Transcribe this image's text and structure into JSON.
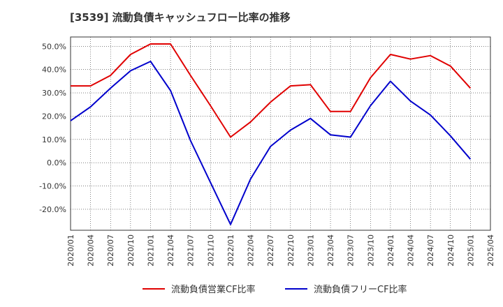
{
  "chart_data": {
    "type": "line",
    "title": "[3539]  流動負債キャッシュフロー比率の推移",
    "xlabel": "",
    "ylabel": "",
    "ylim": [
      -29,
      54
    ],
    "yticks": [
      50,
      40,
      30,
      20,
      10,
      0,
      -10,
      -20
    ],
    "ytick_labels": [
      "50.0%",
      "40.0%",
      "30.0%",
      "20.0%",
      "10.0%",
      "0.0%",
      "-10.0%",
      "-20.0%"
    ],
    "x": [
      "2020/01",
      "2020/04",
      "2020/07",
      "2020/10",
      "2021/01",
      "2021/04",
      "2021/07",
      "2021/10",
      "2022/01",
      "2022/04",
      "2022/07",
      "2022/10",
      "2023/01",
      "2023/04",
      "2023/07",
      "2023/10",
      "2024/01",
      "2024/04",
      "2024/07",
      "2024/10",
      "2025/01",
      "2025/04"
    ],
    "grid": true,
    "legend_position": "bottom",
    "series": [
      {
        "name": "流動負債営業CF比率",
        "color": "#e00000",
        "values": [
          33.0,
          33.0,
          37.5,
          46.5,
          51.0,
          51.0,
          37.5,
          24.5,
          11.0,
          17.5,
          26.0,
          33.0,
          33.5,
          22.0,
          22.0,
          36.5,
          46.5,
          44.5,
          46.0,
          41.5,
          32.0,
          null
        ]
      },
      {
        "name": "流動負債フリーCF比率",
        "color": "#0000cc",
        "values": [
          18.0,
          24.0,
          32.0,
          39.5,
          43.5,
          31.0,
          9.5,
          -8.5,
          -26.5,
          -7.0,
          7.0,
          14.0,
          19.0,
          12.0,
          11.0,
          24.5,
          35.0,
          26.5,
          20.5,
          11.5,
          1.5,
          null
        ]
      }
    ]
  }
}
